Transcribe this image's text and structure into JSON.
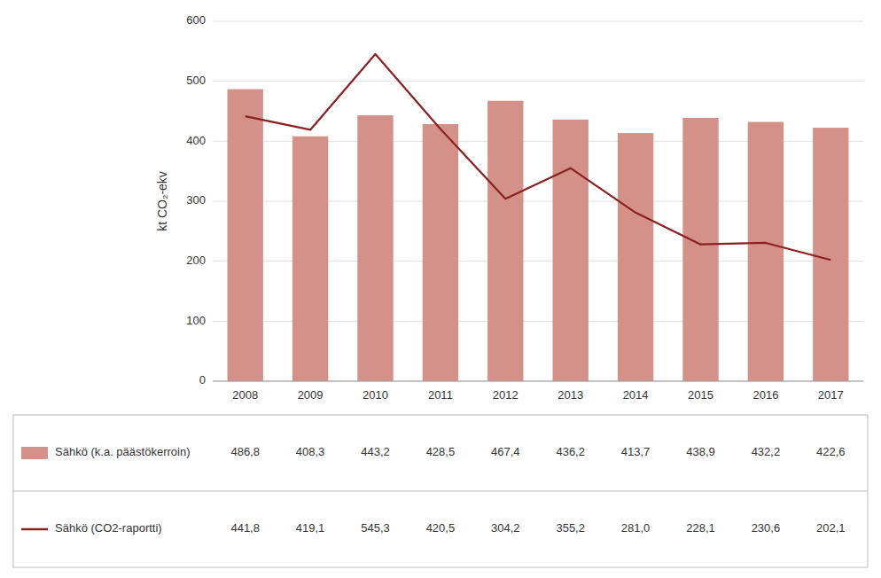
{
  "chart_data": {
    "type": "bar",
    "y_label": "kt CO₂-ekv",
    "categories": [
      "2008",
      "2009",
      "2010",
      "2011",
      "2012",
      "2013",
      "2014",
      "2015",
      "2016",
      "2017"
    ],
    "series": [
      {
        "name": "Sähkö (k.a. päästökerroin)",
        "type": "bar",
        "color": "#d4918a",
        "values": [
          486.8,
          408.3,
          443.2,
          428.5,
          467.4,
          436.2,
          413.7,
          438.9,
          432.2,
          422.6
        ],
        "value_labels": [
          "486,8",
          "408,3",
          "443,2",
          "428,5",
          "467,4",
          "436,2",
          "413,7",
          "438,9",
          "432,2",
          "422,6"
        ]
      },
      {
        "name": "Sähkö (CO2-raportti)",
        "type": "line",
        "color": "#8b2020",
        "values": [
          441.8,
          419.1,
          545.3,
          420.5,
          304.2,
          355.2,
          281.0,
          228.1,
          230.6,
          202.1
        ],
        "value_labels": [
          "441,8",
          "419,1",
          "545,3",
          "420,5",
          "304,2",
          "355,2",
          "281,0",
          "228,1",
          "230,6",
          "202,1"
        ]
      }
    ],
    "ylim": [
      0,
      600
    ],
    "yticks": [
      0,
      100,
      200,
      300,
      400,
      500,
      600
    ],
    "grid": true,
    "data_labels": true
  }
}
